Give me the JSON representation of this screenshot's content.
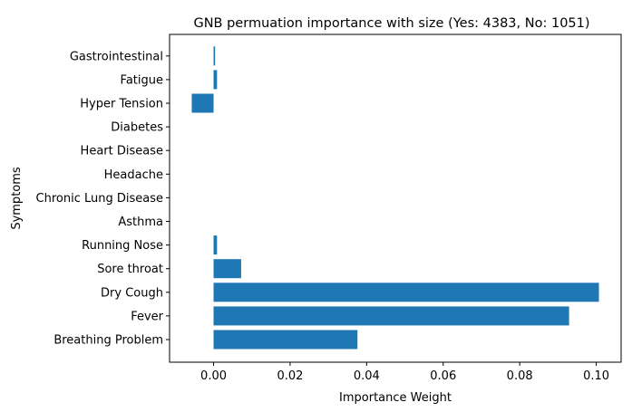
{
  "chart_data": {
    "type": "bar",
    "orientation": "horizontal",
    "title": "GNB permuation importance with size (Yes: 4383, No: 1051)",
    "xlabel": "Importance Weight",
    "ylabel": "Symptoms",
    "xlim": [
      -0.0115,
      0.1065
    ],
    "x_ticks": [
      "0.00",
      "0.02",
      "0.04",
      "0.06",
      "0.08",
      "0.10"
    ],
    "x_tick_values": [
      0.0,
      0.02,
      0.04,
      0.06,
      0.08,
      0.1
    ],
    "categories": [
      "Breathing Problem",
      "Fever",
      "Dry Cough",
      "Sore throat",
      "Running Nose",
      "Asthma",
      "Chronic Lung Disease",
      "Headache",
      "Heart Disease",
      "Diabetes",
      "Hyper Tension",
      "Fatigue ",
      "Gastrointestinal"
    ],
    "values": [
      0.0376,
      0.0929,
      0.1007,
      0.0072,
      0.0009,
      0.0,
      0.0,
      0.0,
      0.0,
      0.0,
      -0.0057,
      0.0009,
      0.0004
    ],
    "bar_color": "#1f77b4",
    "grid": false,
    "legend": "none"
  }
}
